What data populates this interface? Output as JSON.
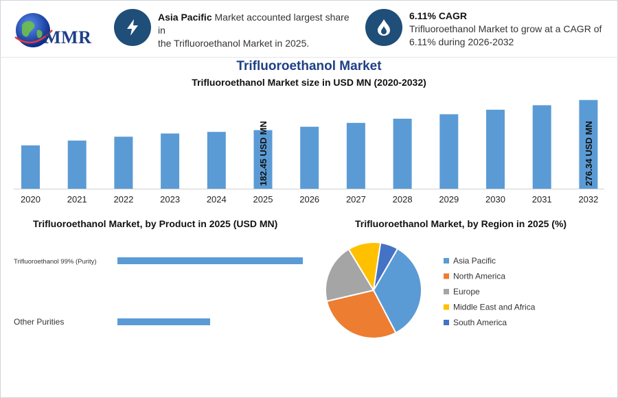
{
  "brand": {
    "logo_text": "MMR",
    "logo_icon": "globe-icon"
  },
  "highlights": [
    {
      "icon": "lightning-icon",
      "bold": "Asia Pacific",
      "text_line1": " Market accounted largest share in",
      "text_line2": "the Trifluoroethanol Market in 2025."
    },
    {
      "icon": "flame-drop-icon",
      "bold": "6.11% CAGR",
      "text_line1": "Trifluoroethanol Market to grow at a CAGR of",
      "text_line2": "6.11% during 2026-2032"
    }
  ],
  "title": "Trifluoroethanol Market",
  "colors": {
    "bar": "#5b9bd5",
    "title": "#1f3f86",
    "icon_bg": "#1f4e79"
  },
  "chart_data": [
    {
      "type": "bar",
      "title": "Trifluoroethanol Market size in USD MN (2020-2032)",
      "categories": [
        "2020",
        "2021",
        "2022",
        "2023",
        "2024",
        "2025",
        "2026",
        "2027",
        "2028",
        "2029",
        "2030",
        "2031",
        "2032"
      ],
      "values": [
        135,
        150,
        162,
        172,
        177,
        182.45,
        193,
        205,
        218,
        232,
        246,
        260,
        276.34
      ],
      "ylim": [
        0,
        280
      ],
      "data_labels": {
        "2025": "182.45 USD MN",
        "2032": "276.34 USD MN"
      }
    },
    {
      "type": "bar",
      "orientation": "horizontal",
      "title": "Trifluoroethanol Market, by Product in 2025 (USD MN)",
      "categories": [
        "Trifluoroethanol 99% (Purity)",
        "Other Purities"
      ],
      "values": [
        128,
        64
      ],
      "xlim": [
        0,
        128
      ]
    },
    {
      "type": "pie",
      "title": "Trifluoroethanol Market, by Region in 2025 (%)",
      "labels": [
        "Asia Pacific",
        "North America",
        "Europe",
        "Middle East and Africa",
        "South America"
      ],
      "values": [
        34,
        29,
        20,
        11,
        6
      ],
      "colors": [
        "#5b9bd5",
        "#ed7d31",
        "#a5a5a5",
        "#ffc000",
        "#4472c4"
      ],
      "legend_position": "right"
    }
  ]
}
